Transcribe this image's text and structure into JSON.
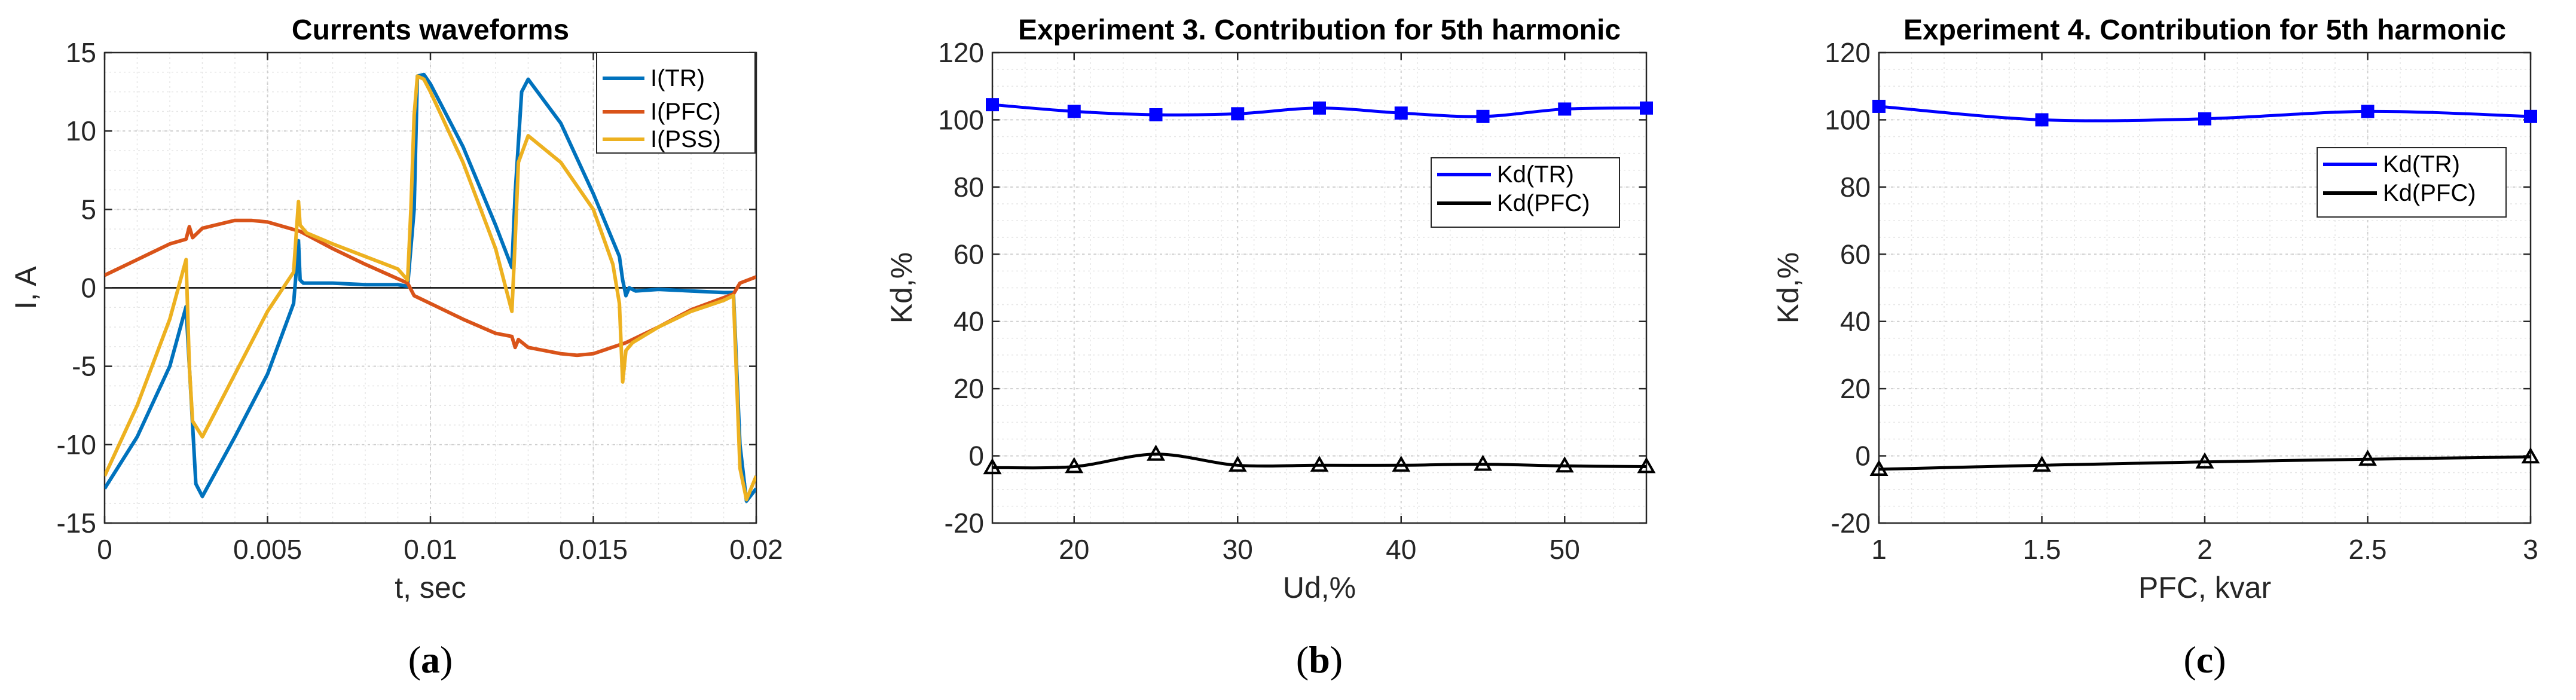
{
  "chart_data": [
    {
      "type": "line",
      "title": "Currents waveforms",
      "xlabel": "t, sec",
      "ylabel": "I, A",
      "xlim": [
        0,
        0.02
      ],
      "ylim": [
        -15,
        15
      ],
      "xticks": [
        0,
        0.005,
        0.01,
        0.015,
        0.02
      ],
      "xtick_labels": [
        "0",
        "0.005",
        "0.01",
        "0.015",
        "0.02"
      ],
      "yticks": [
        -15,
        -10,
        -5,
        0,
        5,
        10,
        15
      ],
      "ytick_labels": [
        "-15",
        "-10",
        "-5",
        "0",
        "5",
        "10",
        "15"
      ],
      "grid": true,
      "legend": "top-right",
      "panel_label": "(a)",
      "panel_letter": "a",
      "zero_line": true,
      "series": [
        {
          "name": "I(TR)",
          "color": "#0072BD",
          "x": [
            0,
            0.001,
            0.002,
            0.0025,
            0.0026,
            0.0028,
            0.003,
            0.004,
            0.005,
            0.0058,
            0.0059,
            0.00595,
            0.006,
            0.0061,
            0.007,
            0.008,
            0.009,
            0.0093,
            0.0095,
            0.0096,
            0.0098,
            0.01,
            0.011,
            0.012,
            0.0125,
            0.0126,
            0.0128,
            0.013,
            0.014,
            0.015,
            0.0158,
            0.0159,
            0.016,
            0.0161,
            0.0163,
            0.017,
            0.018,
            0.019,
            0.0193,
            0.0195,
            0.0197,
            0.02
          ],
          "y": [
            -12.8,
            -9.5,
            -5,
            -1.2,
            -5,
            -12.5,
            -13.3,
            -9.5,
            -5.5,
            -1,
            1.5,
            3,
            0.5,
            0.3,
            0.3,
            0.2,
            0.2,
            0.1,
            5,
            13.5,
            13.6,
            13,
            9,
            4,
            1.3,
            6,
            12.5,
            13.3,
            10.5,
            6,
            2,
            0.5,
            -0.5,
            0,
            -0.2,
            -0.1,
            -0.2,
            -0.3,
            -0.3,
            -10,
            -13.6,
            -12.8
          ]
        },
        {
          "name": "I(PFC)",
          "color": "#D95319",
          "x": [
            0,
            0.001,
            0.002,
            0.0025,
            0.0026,
            0.0027,
            0.003,
            0.004,
            0.0045,
            0.005,
            0.006,
            0.007,
            0.008,
            0.0093,
            0.0095,
            0.01,
            0.011,
            0.012,
            0.0125,
            0.0126,
            0.0127,
            0.013,
            0.014,
            0.0145,
            0.015,
            0.016,
            0.017,
            0.018,
            0.0193,
            0.0195,
            0.02
          ],
          "y": [
            0.8,
            1.8,
            2.8,
            3.1,
            3.9,
            3.2,
            3.8,
            4.3,
            4.3,
            4.2,
            3.6,
            2.5,
            1.5,
            0.3,
            -0.5,
            -1,
            -2,
            -2.9,
            -3.1,
            -3.8,
            -3.3,
            -3.8,
            -4.2,
            -4.3,
            -4.2,
            -3.5,
            -2.5,
            -1.4,
            -0.4,
            0.3,
            0.7
          ]
        },
        {
          "name": "I(PSS)",
          "color": "#EDB120",
          "x": [
            0,
            0.001,
            0.002,
            0.0025,
            0.0026,
            0.0027,
            0.003,
            0.004,
            0.005,
            0.0058,
            0.00595,
            0.006,
            0.0062,
            0.007,
            0.008,
            0.009,
            0.0093,
            0.0094,
            0.0095,
            0.0096,
            0.0098,
            0.01,
            0.011,
            0.012,
            0.0125,
            0.0126,
            0.0127,
            0.013,
            0.014,
            0.015,
            0.0156,
            0.0158,
            0.0159,
            0.016,
            0.0162,
            0.017,
            0.018,
            0.019,
            0.0193,
            0.0195,
            0.0197,
            0.02
          ],
          "y": [
            -12,
            -7.5,
            -2,
            1.8,
            -5,
            -8.5,
            -9.5,
            -5.5,
            -1.5,
            1,
            5.5,
            4,
            3.5,
            2.8,
            2,
            1.2,
            0.5,
            5,
            11,
            13.5,
            13.3,
            12.5,
            8,
            2.5,
            -1.5,
            3,
            8,
            9.7,
            8,
            5,
            1.5,
            -1,
            -6,
            -4,
            -3.5,
            -2.5,
            -1.5,
            -0.8,
            -0.5,
            -11.5,
            -13.5,
            -12
          ]
        }
      ]
    },
    {
      "type": "line",
      "title": "Experiment 3. Contribution for 5th harmonic",
      "xlabel": "Ud,%",
      "ylabel": "Kd,%",
      "xlim": [
        15,
        55
      ],
      "ylim": [
        -20,
        120
      ],
      "xticks": [
        20,
        30,
        40,
        50
      ],
      "xtick_labels": [
        "20",
        "30",
        "40",
        "50"
      ],
      "yticks": [
        -20,
        0,
        20,
        40,
        60,
        80,
        100,
        120
      ],
      "ytick_labels": [
        "-20",
        "0",
        "20",
        "40",
        "60",
        "80",
        "100",
        "120"
      ],
      "grid": true,
      "legend": "right",
      "panel_label": "(b)",
      "panel_letter": "b",
      "x": [
        15,
        20,
        25,
        30,
        35,
        40,
        45,
        50,
        55
      ],
      "series": [
        {
          "name": "Kd(TR)",
          "color": "#0000FF",
          "marker": "square",
          "values": [
            104.5,
            102.5,
            101.5,
            101.8,
            103.5,
            102,
            101,
            103.2,
            103.5
          ]
        },
        {
          "name": "Kd(PFC)",
          "color": "#000000",
          "marker": "triangle",
          "values": [
            -3.5,
            -3.2,
            0.5,
            -2.8,
            -2.8,
            -2.8,
            -2.5,
            -3,
            -3.2
          ]
        }
      ]
    },
    {
      "type": "line",
      "title": "Experiment 4. Contribution for 5th harmonic",
      "xlabel": "PFC, kvar",
      "ylabel": "Kd,%",
      "xlim": [
        1,
        3
      ],
      "ylim": [
        -20,
        120
      ],
      "xticks": [
        1,
        1.5,
        2,
        2.5,
        3
      ],
      "xtick_labels": [
        "1",
        "1.5",
        "2",
        "2.5",
        "3"
      ],
      "yticks": [
        -20,
        0,
        20,
        40,
        60,
        80,
        100,
        120
      ],
      "ytick_labels": [
        "-20",
        "0",
        "20",
        "40",
        "60",
        "80",
        "100",
        "120"
      ],
      "grid": true,
      "legend": "right",
      "panel_label": "(c)",
      "panel_letter": "c",
      "x": [
        1,
        1.5,
        2,
        2.5,
        3
      ],
      "series": [
        {
          "name": "Kd(TR)",
          "color": "#0000FF",
          "marker": "square",
          "values": [
            104,
            100,
            100.3,
            102.5,
            101
          ]
        },
        {
          "name": "Kd(PFC)",
          "color": "#000000",
          "marker": "triangle",
          "values": [
            -4,
            -2.8,
            -1.8,
            -1,
            -0.3
          ]
        }
      ]
    }
  ]
}
